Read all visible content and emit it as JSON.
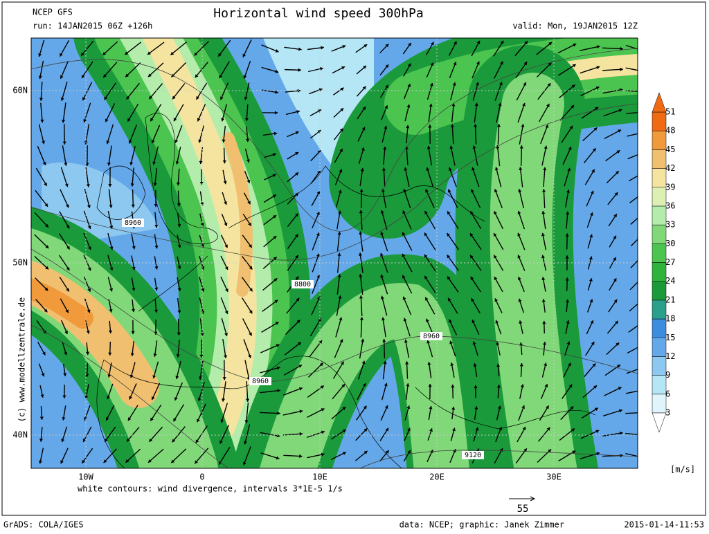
{
  "header": {
    "model": "NCEP GFS",
    "title": "Horizontal wind speed 300hPa",
    "run": "run: 14JAN2015 06Z +126h",
    "valid": "valid: Mon, 19JAN2015 12Z"
  },
  "lat_labels": [
    "60N",
    "50N",
    "40N"
  ],
  "lon_labels": [
    "10W",
    "0",
    "10E",
    "20E",
    "30E"
  ],
  "contour_labels": [
    "8960",
    "8800",
    "8960",
    "8960",
    "9120"
  ],
  "side_text": "(c) www.modellzentrale.de",
  "colorbar": {
    "labels": [
      "3",
      "6",
      "9",
      "12",
      "15",
      "18",
      "21",
      "24",
      "27",
      "30",
      "33",
      "36",
      "39",
      "42",
      "45",
      "48",
      "51"
    ],
    "colors": [
      "#ffffff",
      "#dff5fb",
      "#b4e6f5",
      "#8cc8f0",
      "#64a8ea",
      "#3c8ce0",
      "#2aa08c",
      "#1a9a3a",
      "#2eb43c",
      "#4cc450",
      "#80d878",
      "#b4ecac",
      "#dcf0b4",
      "#f4e4a0",
      "#f0c070",
      "#f09a3c",
      "#f06a14"
    ],
    "units": "[m/s]"
  },
  "note": "white contours: wind divergence, intervals 3*1E-5 1/s",
  "ref_arrow": "55",
  "footer": {
    "left": "GrADS: COLA/IGES",
    "center": "data: NCEP; graphic: Janek Zimmer",
    "right": "2015-01-14-11:53"
  }
}
